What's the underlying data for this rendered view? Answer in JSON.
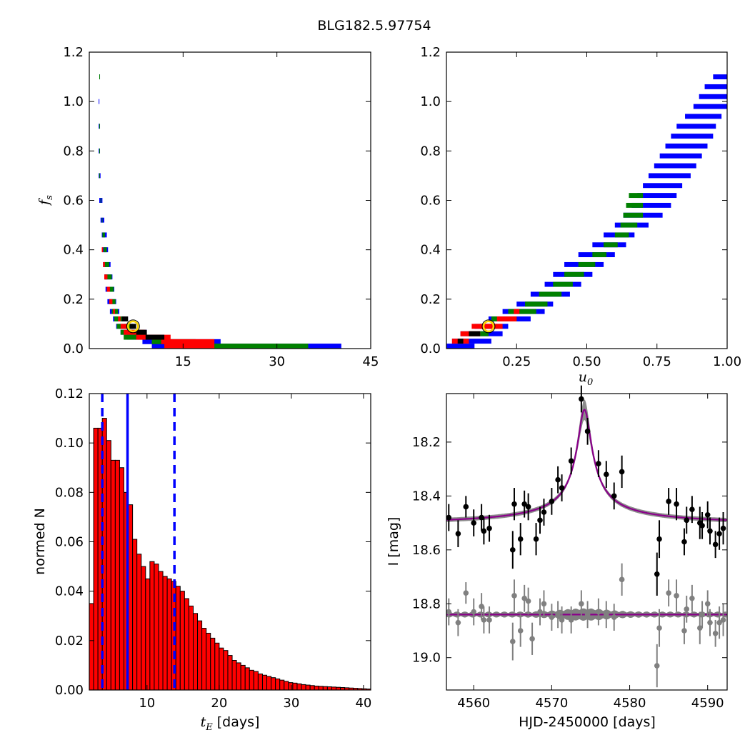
{
  "figure_title": "BLG182.5.97754",
  "chart_data": [
    {
      "type": "heatmap",
      "panel": "tE-fs posterior",
      "xlabel": "",
      "ylabel": "f_s",
      "xlim": [
        0,
        45
      ],
      "ylim": [
        0,
        1.2
      ],
      "xticks": [
        15,
        30,
        45
      ],
      "yticks": [
        0.0,
        0.2,
        0.4,
        0.6,
        0.8,
        1.0,
        1.2
      ],
      "colors": {
        "outer": "#0000ff",
        "mid": "#008000",
        "inner": "#ff0000",
        "core": "#000000",
        "marker": "#ffd700"
      },
      "best_fit": {
        "x": 7.0,
        "y": 0.09
      },
      "regions": {
        "outer": [
          [
            1.6,
            1.1,
            1.3
          ],
          [
            1.5,
            1.0,
            1.4
          ],
          [
            1.5,
            0.9,
            1.4
          ],
          [
            1.5,
            0.8,
            1.6
          ],
          [
            1.5,
            0.7,
            1.8
          ],
          [
            1.6,
            0.6,
            2.1
          ],
          [
            1.8,
            0.52,
            2.4
          ],
          [
            2.0,
            0.46,
            2.8
          ],
          [
            2.1,
            0.4,
            3.0
          ],
          [
            2.2,
            0.34,
            3.4
          ],
          [
            2.4,
            0.29,
            3.7
          ],
          [
            2.6,
            0.24,
            4.0
          ],
          [
            2.9,
            0.19,
            4.3
          ],
          [
            3.3,
            0.15,
            4.8
          ],
          [
            3.8,
            0.12,
            5.7
          ],
          [
            4.3,
            0.09,
            7.1
          ],
          [
            5.0,
            0.066,
            9.2
          ],
          [
            6.0,
            0.046,
            12.0
          ],
          [
            8.5,
            0.028,
            21.0
          ],
          [
            10.0,
            0.01,
            40.3
          ]
        ],
        "mid": [
          [
            1.6,
            1.1,
            1.2
          ],
          [
            1.6,
            0.9,
            1.2
          ],
          [
            1.6,
            0.8,
            1.4
          ],
          [
            1.6,
            0.7,
            1.5
          ],
          [
            1.8,
            0.6,
            1.9
          ],
          [
            2.0,
            0.52,
            2.1
          ],
          [
            2.1,
            0.46,
            2.5
          ],
          [
            2.3,
            0.4,
            2.8
          ],
          [
            2.4,
            0.34,
            3.2
          ],
          [
            2.5,
            0.29,
            3.6
          ],
          [
            2.8,
            0.24,
            3.9
          ],
          [
            3.2,
            0.19,
            4.2
          ],
          [
            3.6,
            0.15,
            4.6
          ],
          [
            4.0,
            0.12,
            5.6
          ],
          [
            4.4,
            0.09,
            7.0
          ],
          [
            5.0,
            0.066,
            8.8
          ],
          [
            5.5,
            0.046,
            11.5
          ],
          [
            10.0,
            0.028,
            17.0
          ],
          [
            12.0,
            0.01,
            35.0
          ]
        ],
        "inner": [
          [
            2.0,
            0.4,
            2.2
          ],
          [
            2.2,
            0.34,
            2.5
          ],
          [
            2.4,
            0.29,
            2.9
          ],
          [
            2.8,
            0.24,
            3.3
          ],
          [
            3.2,
            0.19,
            3.7
          ],
          [
            3.8,
            0.15,
            4.1
          ],
          [
            4.6,
            0.12,
            5.0
          ],
          [
            5.0,
            0.09,
            6.0
          ],
          [
            5.5,
            0.066,
            9.0
          ],
          [
            7.5,
            0.046,
            13.0
          ],
          [
            11.5,
            0.028,
            20.0
          ],
          [
            12.0,
            0.01,
            20.0
          ]
        ],
        "core": [
          [
            5.2,
            0.12,
            6.2
          ],
          [
            6.5,
            0.09,
            7.5
          ],
          [
            7.5,
            0.066,
            9.2
          ],
          [
            9.0,
            0.046,
            12.0
          ]
        ]
      }
    },
    {
      "type": "heatmap",
      "panel": "u0-fs posterior",
      "xlabel": "u_0",
      "ylabel": "",
      "xlim": [
        0,
        1.0
      ],
      "ylim": [
        0,
        1.2
      ],
      "xticks": [
        0.25,
        0.5,
        0.75,
        1.0
      ],
      "xticklabels": [
        "0.25",
        "0.50",
        "0.75",
        "1.00"
      ],
      "yticks": [
        0.0,
        0.2,
        0.4,
        0.6,
        0.8,
        1.0,
        1.2
      ],
      "colors": {
        "outer": "#0000ff",
        "mid": "#008000",
        "inner": "#ff0000",
        "core": "#000000",
        "marker": "#ffd700"
      },
      "best_fit": {
        "x": 0.15,
        "y": 0.09
      },
      "regions": {
        "outer": [
          [
            0.0,
            0.01,
            0.1
          ],
          [
            0.02,
            0.03,
            0.16
          ],
          [
            0.05,
            0.06,
            0.2
          ],
          [
            0.1,
            0.09,
            0.22
          ],
          [
            0.15,
            0.12,
            0.3
          ],
          [
            0.2,
            0.15,
            0.35
          ],
          [
            0.25,
            0.18,
            0.38
          ],
          [
            0.3,
            0.22,
            0.44
          ],
          [
            0.35,
            0.26,
            0.48
          ],
          [
            0.38,
            0.3,
            0.52
          ],
          [
            0.42,
            0.34,
            0.56
          ],
          [
            0.47,
            0.38,
            0.6
          ],
          [
            0.52,
            0.42,
            0.64
          ],
          [
            0.56,
            0.46,
            0.67
          ],
          [
            0.6,
            0.5,
            0.72
          ],
          [
            0.63,
            0.54,
            0.77
          ],
          [
            0.66,
            0.58,
            0.8
          ],
          [
            0.68,
            0.62,
            0.82
          ],
          [
            0.7,
            0.66,
            0.84
          ],
          [
            0.72,
            0.7,
            0.87
          ],
          [
            0.74,
            0.74,
            0.89
          ],
          [
            0.76,
            0.78,
            0.91
          ],
          [
            0.78,
            0.82,
            0.93
          ],
          [
            0.8,
            0.86,
            0.95
          ],
          [
            0.82,
            0.9,
            0.96
          ],
          [
            0.85,
            0.94,
            0.98
          ],
          [
            0.88,
            0.98,
            1.0
          ],
          [
            0.9,
            1.02,
            1.0
          ],
          [
            0.92,
            1.06,
            1.0
          ],
          [
            0.95,
            1.1,
            1.0
          ]
        ],
        "mid": [
          [
            0.08,
            0.06,
            0.15
          ],
          [
            0.12,
            0.09,
            0.18
          ],
          [
            0.16,
            0.12,
            0.25
          ],
          [
            0.22,
            0.15,
            0.32
          ],
          [
            0.28,
            0.18,
            0.36
          ],
          [
            0.33,
            0.22,
            0.41
          ],
          [
            0.38,
            0.26,
            0.45
          ],
          [
            0.42,
            0.3,
            0.49
          ],
          [
            0.47,
            0.34,
            0.53
          ],
          [
            0.52,
            0.38,
            0.57
          ],
          [
            0.56,
            0.42,
            0.61
          ],
          [
            0.6,
            0.46,
            0.65
          ],
          [
            0.62,
            0.5,
            0.68
          ],
          [
            0.63,
            0.54,
            0.7
          ],
          [
            0.64,
            0.58,
            0.7
          ],
          [
            0.65,
            0.62,
            0.7
          ]
        ],
        "inner": [
          [
            0.02,
            0.03,
            0.08
          ],
          [
            0.05,
            0.06,
            0.12
          ],
          [
            0.09,
            0.09,
            0.2
          ],
          [
            0.18,
            0.12,
            0.25
          ],
          [
            0.24,
            0.15,
            0.26
          ]
        ],
        "core": [
          [
            0.04,
            0.03,
            0.06
          ],
          [
            0.08,
            0.06,
            0.12
          ]
        ]
      }
    },
    {
      "type": "bar",
      "panel": "tE histogram",
      "xlabel": "t_E [days]",
      "ylabel": "normed N",
      "xlim": [
        2,
        41
      ],
      "ylim": [
        0,
        0.12
      ],
      "xticks": [
        10,
        20,
        30,
        40
      ],
      "yticks": [
        0.0,
        0.02,
        0.04,
        0.06,
        0.08,
        0.1,
        0.12
      ],
      "yticklabels": [
        "0.00",
        "0.02",
        "0.04",
        "0.06",
        "0.08",
        "0.10",
        "0.12"
      ],
      "bar_color": "#ff0000",
      "bin_start": 2.0,
      "bin_width": 0.6,
      "values": [
        0.035,
        0.106,
        0.106,
        0.11,
        0.101,
        0.093,
        0.093,
        0.09,
        0.08,
        0.075,
        0.061,
        0.055,
        0.05,
        0.045,
        0.052,
        0.051,
        0.048,
        0.046,
        0.045,
        0.044,
        0.042,
        0.04,
        0.037,
        0.034,
        0.031,
        0.028,
        0.025,
        0.023,
        0.021,
        0.019,
        0.017,
        0.016,
        0.014,
        0.012,
        0.011,
        0.01,
        0.009,
        0.008,
        0.0075,
        0.0065,
        0.006,
        0.0055,
        0.005,
        0.0045,
        0.004,
        0.0035,
        0.003,
        0.0028,
        0.0025,
        0.0022,
        0.002,
        0.0018,
        0.0016,
        0.0015,
        0.0014,
        0.0013,
        0.0012,
        0.0011,
        0.001,
        0.0009,
        0.0008,
        0.0007,
        0.0006,
        0.0005,
        0.0004
      ],
      "vlines": [
        {
          "x": 3.8,
          "style": "dashed",
          "color": "#0000ff"
        },
        {
          "x": 7.3,
          "style": "solid",
          "color": "#0000ff"
        },
        {
          "x": 13.8,
          "style": "dashed",
          "color": "#0000ff"
        }
      ]
    },
    {
      "type": "scatter",
      "panel": "light curve",
      "xlabel": "HJD-2450000 [days]",
      "ylabel": "I [mag]",
      "xlim": [
        4556.5,
        4592.5
      ],
      "ylim": [
        19.12,
        18.02
      ],
      "xticks": [
        4560,
        4570,
        4580,
        4590
      ],
      "yticks": [
        18.2,
        18.4,
        18.6,
        18.8,
        19.0
      ],
      "model": {
        "color": "#8b008b",
        "band_color": "#808080",
        "baseline": 18.51,
        "peak_time": 4574.2,
        "peak_mag": 18.08,
        "tE": 1.8
      },
      "residual_baseline": 18.84,
      "data": [
        {
          "t": 4556.8,
          "m": 18.48,
          "e": 0.05
        },
        {
          "t": 4558.0,
          "m": 18.54,
          "e": 0.05
        },
        {
          "t": 4559.0,
          "m": 18.44,
          "e": 0.04
        },
        {
          "t": 4560.0,
          "m": 18.5,
          "e": 0.05
        },
        {
          "t": 4561.0,
          "m": 18.48,
          "e": 0.05
        },
        {
          "t": 4561.3,
          "m": 18.53,
          "e": 0.05
        },
        {
          "t": 4562.0,
          "m": 18.52,
          "e": 0.05
        },
        {
          "t": 4565.0,
          "m": 18.6,
          "e": 0.07
        },
        {
          "t": 4565.2,
          "m": 18.43,
          "e": 0.06
        },
        {
          "t": 4566.0,
          "m": 18.56,
          "e": 0.06
        },
        {
          "t": 4566.5,
          "m": 18.43,
          "e": 0.05
        },
        {
          "t": 4567.0,
          "m": 18.44,
          "e": 0.05
        },
        {
          "t": 4568.0,
          "m": 18.56,
          "e": 0.06
        },
        {
          "t": 4568.5,
          "m": 18.49,
          "e": 0.05
        },
        {
          "t": 4569.0,
          "m": 18.46,
          "e": 0.05
        },
        {
          "t": 4570.0,
          "m": 18.42,
          "e": 0.05
        },
        {
          "t": 4570.8,
          "m": 18.34,
          "e": 0.05
        },
        {
          "t": 4571.3,
          "m": 18.37,
          "e": 0.05
        },
        {
          "t": 4572.5,
          "m": 18.27,
          "e": 0.05
        },
        {
          "t": 4573.8,
          "m": 18.04,
          "e": 0.05
        },
        {
          "t": 4574.6,
          "m": 18.16,
          "e": 0.05
        },
        {
          "t": 4576.0,
          "m": 18.28,
          "e": 0.05
        },
        {
          "t": 4577.0,
          "m": 18.32,
          "e": 0.05
        },
        {
          "t": 4578.0,
          "m": 18.4,
          "e": 0.05
        },
        {
          "t": 4579.0,
          "m": 18.31,
          "e": 0.06
        },
        {
          "t": 4583.5,
          "m": 18.69,
          "e": 0.08
        },
        {
          "t": 4583.8,
          "m": 18.56,
          "e": 0.07
        },
        {
          "t": 4585.0,
          "m": 18.42,
          "e": 0.05
        },
        {
          "t": 4586.0,
          "m": 18.43,
          "e": 0.06
        },
        {
          "t": 4587.0,
          "m": 18.57,
          "e": 0.05
        },
        {
          "t": 4587.3,
          "m": 18.49,
          "e": 0.05
        },
        {
          "t": 4588.0,
          "m": 18.45,
          "e": 0.05
        },
        {
          "t": 4589.0,
          "m": 18.5,
          "e": 0.06
        },
        {
          "t": 4589.3,
          "m": 18.51,
          "e": 0.05
        },
        {
          "t": 4590.0,
          "m": 18.47,
          "e": 0.05
        },
        {
          "t": 4590.3,
          "m": 18.53,
          "e": 0.05
        },
        {
          "t": 4591.0,
          "m": 18.58,
          "e": 0.05
        },
        {
          "t": 4591.5,
          "m": 18.54,
          "e": 0.06
        },
        {
          "t": 4592.0,
          "m": 18.52,
          "e": 0.06
        }
      ],
      "residuals": [
        {
          "t": 4556.8,
          "m": 18.83,
          "e": 0.05
        },
        {
          "t": 4558.0,
          "m": 18.87,
          "e": 0.05
        },
        {
          "t": 4559.0,
          "m": 18.76,
          "e": 0.04
        },
        {
          "t": 4560.0,
          "m": 18.83,
          "e": 0.05
        },
        {
          "t": 4561.0,
          "m": 18.81,
          "e": 0.05
        },
        {
          "t": 4561.3,
          "m": 18.86,
          "e": 0.05
        },
        {
          "t": 4562.0,
          "m": 18.86,
          "e": 0.05
        },
        {
          "t": 4565.0,
          "m": 18.94,
          "e": 0.07
        },
        {
          "t": 4565.2,
          "m": 18.77,
          "e": 0.06
        },
        {
          "t": 4566.0,
          "m": 18.9,
          "e": 0.06
        },
        {
          "t": 4566.5,
          "m": 18.78,
          "e": 0.05
        },
        {
          "t": 4567.0,
          "m": 18.79,
          "e": 0.05
        },
        {
          "t": 4567.5,
          "m": 18.93,
          "e": 0.06
        },
        {
          "t": 4568.5,
          "m": 18.83,
          "e": 0.05
        },
        {
          "t": 4569.0,
          "m": 18.8,
          "e": 0.05
        },
        {
          "t": 4570.0,
          "m": 18.85,
          "e": 0.05
        },
        {
          "t": 4570.8,
          "m": 18.84,
          "e": 0.05
        },
        {
          "t": 4571.3,
          "m": 18.86,
          "e": 0.05
        },
        {
          "t": 4572.5,
          "m": 18.86,
          "e": 0.05
        },
        {
          "t": 4573.8,
          "m": 18.8,
          "e": 0.05
        },
        {
          "t": 4574.6,
          "m": 18.84,
          "e": 0.05
        },
        {
          "t": 4576.0,
          "m": 18.83,
          "e": 0.05
        },
        {
          "t": 4577.0,
          "m": 18.84,
          "e": 0.05
        },
        {
          "t": 4578.0,
          "m": 18.85,
          "e": 0.05
        },
        {
          "t": 4579.0,
          "m": 18.71,
          "e": 0.06
        },
        {
          "t": 4583.5,
          "m": 19.03,
          "e": 0.08
        },
        {
          "t": 4583.8,
          "m": 18.89,
          "e": 0.07
        },
        {
          "t": 4585.0,
          "m": 18.76,
          "e": 0.05
        },
        {
          "t": 4586.0,
          "m": 18.77,
          "e": 0.06
        },
        {
          "t": 4587.0,
          "m": 18.9,
          "e": 0.05
        },
        {
          "t": 4587.3,
          "m": 18.82,
          "e": 0.05
        },
        {
          "t": 4588.0,
          "m": 18.78,
          "e": 0.05
        },
        {
          "t": 4589.0,
          "m": 18.89,
          "e": 0.06
        },
        {
          "t": 4589.3,
          "m": 18.84,
          "e": 0.05
        },
        {
          "t": 4590.0,
          "m": 18.8,
          "e": 0.05
        },
        {
          "t": 4590.3,
          "m": 18.87,
          "e": 0.05
        },
        {
          "t": 4591.0,
          "m": 18.91,
          "e": 0.05
        },
        {
          "t": 4591.5,
          "m": 18.87,
          "e": 0.06
        },
        {
          "t": 4592.0,
          "m": 18.86,
          "e": 0.06
        }
      ]
    }
  ]
}
